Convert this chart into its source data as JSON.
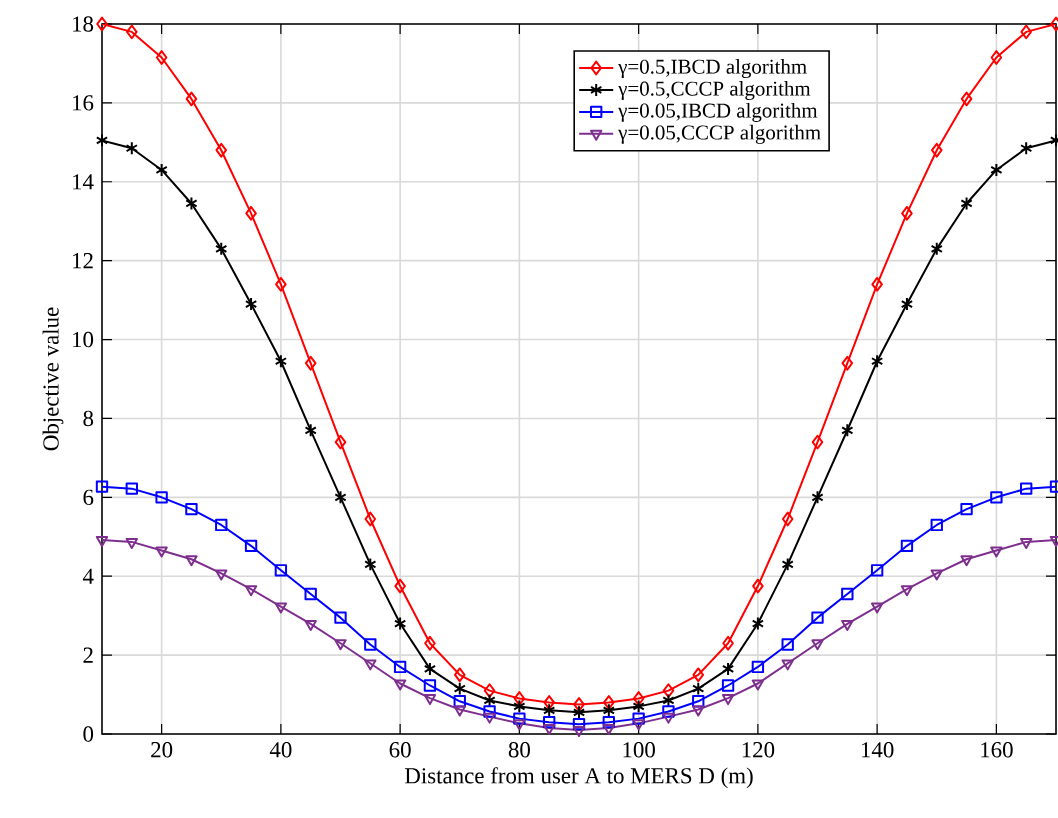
{
  "chart_data": {
    "type": "line",
    "xlabel": "Distance from user A to MERS D (m)",
    "ylabel": "Objective value",
    "x": [
      10,
      15,
      20,
      25,
      30,
      35,
      40,
      45,
      50,
      55,
      60,
      65,
      70,
      75,
      80,
      85,
      90,
      95,
      100,
      105,
      110,
      115,
      120,
      125,
      130,
      135,
      140,
      145,
      150,
      155,
      160,
      165,
      170
    ],
    "series": [
      {
        "name": "γ=0.5,IBCD algorithm",
        "color": "#ff0000",
        "marker": "diamond",
        "values": [
          18,
          17.8,
          17.15,
          16.1,
          14.8,
          13.2,
          11.4,
          9.4,
          7.4,
          5.45,
          3.75,
          2.3,
          1.5,
          1.1,
          0.9,
          0.8,
          0.75,
          0.8,
          0.9,
          1.1,
          1.5,
          2.3,
          3.75,
          5.45,
          7.4,
          9.4,
          11.4,
          13.2,
          14.8,
          16.1,
          17.15,
          17.8,
          18
        ]
      },
      {
        "name": "γ=0.5,CCCP algorithm",
        "color": "#000000",
        "marker": "cross",
        "values": [
          15.05,
          14.85,
          14.3,
          13.45,
          12.3,
          10.9,
          9.45,
          7.7,
          6.0,
          4.3,
          2.8,
          1.65,
          1.15,
          0.85,
          0.7,
          0.6,
          0.55,
          0.6,
          0.7,
          0.85,
          1.15,
          1.65,
          2.8,
          4.3,
          6.0,
          7.7,
          9.45,
          10.9,
          12.3,
          13.45,
          14.3,
          14.85,
          15.05
        ]
      },
      {
        "name": "γ=0.05,IBCD algorithm",
        "color": "#0000ff",
        "marker": "square",
        "values": [
          6.27,
          6.22,
          6.0,
          5.7,
          5.3,
          4.77,
          4.15,
          3.55,
          2.95,
          2.27,
          1.7,
          1.23,
          0.83,
          0.57,
          0.39,
          0.3,
          0.25,
          0.3,
          0.39,
          0.57,
          0.83,
          1.23,
          1.7,
          2.27,
          2.95,
          3.55,
          4.15,
          4.77,
          5.3,
          5.7,
          6.0,
          6.22,
          6.27
        ]
      },
      {
        "name": "γ=0.05,CCCP algorithm",
        "color": "#7e2f8e",
        "marker": "triangle_down",
        "values": [
          4.92,
          4.87,
          4.65,
          4.43,
          4.07,
          3.67,
          3.23,
          2.79,
          2.3,
          1.79,
          1.28,
          0.91,
          0.62,
          0.44,
          0.27,
          0.15,
          0.1,
          0.15,
          0.27,
          0.44,
          0.62,
          0.91,
          1.28,
          1.79,
          2.3,
          2.79,
          3.23,
          3.67,
          4.07,
          4.43,
          4.65,
          4.87,
          4.92
        ]
      }
    ],
    "xlim": [
      10,
      170
    ],
    "ylim": [
      0,
      18
    ],
    "xticks": [
      20,
      40,
      60,
      80,
      100,
      120,
      140,
      160
    ],
    "yticks": [
      0,
      2,
      4,
      6,
      8,
      10,
      12,
      14,
      16,
      18
    ],
    "grid": true,
    "legend": "top right",
    "line_style": "solid"
  }
}
